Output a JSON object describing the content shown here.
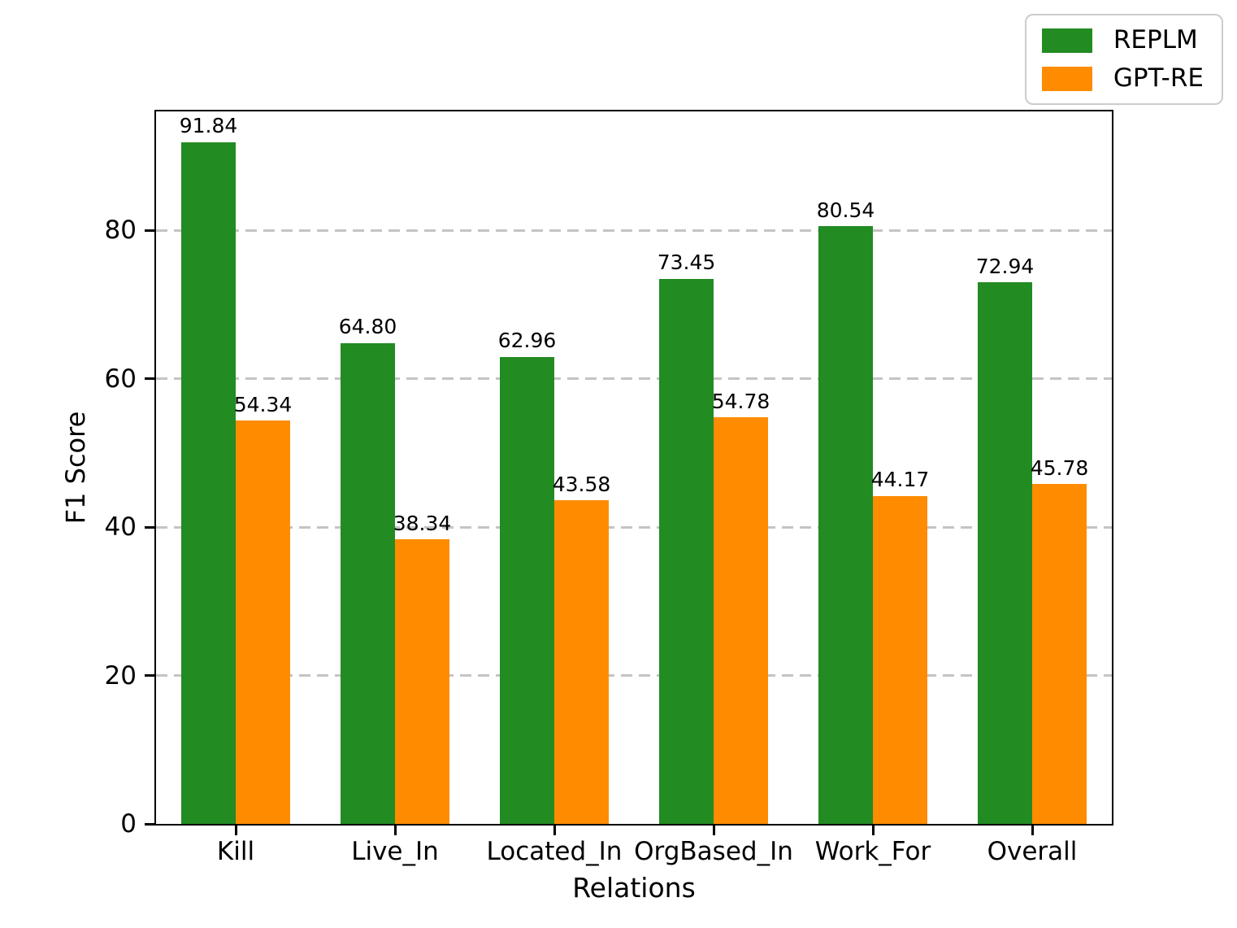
{
  "chart_data": {
    "type": "bar",
    "title": "",
    "xlabel": "Relations",
    "ylabel": "F1 Score",
    "categories": [
      "Kill",
      "Live_In",
      "Located_In",
      "OrgBased_In",
      "Work_For",
      "Overall"
    ],
    "series": [
      {
        "name": "REPLM",
        "color": "#228B22",
        "values": [
          91.84,
          64.8,
          62.96,
          73.45,
          80.54,
          72.94
        ]
      },
      {
        "name": "GPT-RE",
        "color": "#FF8C00",
        "values": [
          54.34,
          38.34,
          43.58,
          54.78,
          44.17,
          45.78
        ]
      }
    ],
    "value_labels": true,
    "value_label_decimals": 2,
    "ylim": [
      0,
      96
    ],
    "yticks": [
      0,
      20,
      40,
      60,
      80
    ],
    "grid": "horizontal-dashed",
    "grid_color": "#c4c4c4",
    "legend_position": "upper-right",
    "frame_color": "#000000",
    "background_color": "#ffffff"
  }
}
